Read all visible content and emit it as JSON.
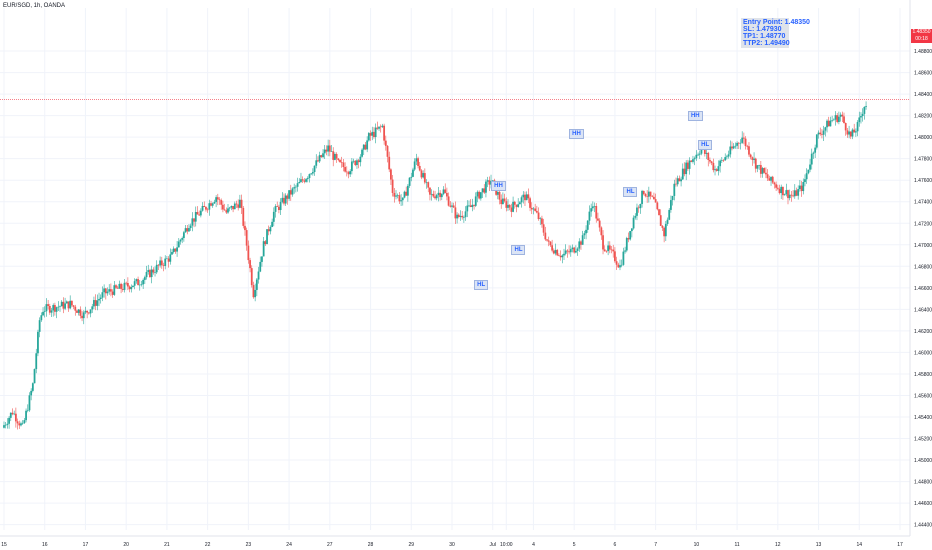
{
  "symbol_label": "EUR/SGD, 1h, OANDA",
  "trade_box": {
    "entry": "Entry Point: 1.48350",
    "sl": "SL: 1.47930",
    "tp1": "TP1: 1.48770",
    "tp2": "TTP2: 1.49490"
  },
  "markers": [
    {
      "label": "HH",
      "time": 145,
      "price": 1.4755
    },
    {
      "label": "HL",
      "time": 151,
      "price": 1.4695
    },
    {
      "label": "HH",
      "time": 168,
      "price": 1.4803
    },
    {
      "label": "HL",
      "time": 184,
      "price": 1.4749
    },
    {
      "label": "HH",
      "time": 203,
      "price": 1.482
    },
    {
      "label": "HL",
      "time": 206,
      "price": 1.4793
    },
    {
      "label": "HL",
      "time": 140,
      "price": 1.4663
    }
  ],
  "last_price": {
    "value": "1.48350",
    "sub": "00:18"
  },
  "colors": {
    "up": "#26a69a",
    "down": "#ef5350",
    "grid": "#f0f3fa",
    "marker_text": "#2962ff",
    "price_line": "#f23645"
  },
  "chart_data": {
    "type": "candlestick",
    "ylim": [
      1.4435,
      1.492
    ],
    "price_ticks": [
      "1.48800",
      "1.48600",
      "1.48400",
      "1.48200",
      "1.48000",
      "1.47800",
      "1.47600",
      "1.47400",
      "1.47200",
      "1.47000",
      "1.46800",
      "1.46600",
      "1.46400",
      "1.46200",
      "1.46000",
      "1.45800",
      "1.45600",
      "1.45400",
      "1.45200",
      "1.45000",
      "1.44800",
      "1.44600",
      "1.44400"
    ],
    "price_tick_values": [
      1.488,
      1.486,
      1.484,
      1.482,
      1.48,
      1.478,
      1.476,
      1.474,
      1.472,
      1.47,
      1.468,
      1.466,
      1.464,
      1.462,
      1.46,
      1.458,
      1.456,
      1.454,
      1.452,
      1.45,
      1.448,
      1.446,
      1.444
    ],
    "time_ticks": [
      {
        "label": "15",
        "time": 0
      },
      {
        "label": "16",
        "time": 12
      },
      {
        "label": "17",
        "time": 24
      },
      {
        "label": "20",
        "time": 36
      },
      {
        "label": "21",
        "time": 48
      },
      {
        "label": "22",
        "time": 60
      },
      {
        "label": "23",
        "time": 72
      },
      {
        "label": "24",
        "time": 84
      },
      {
        "label": "27",
        "time": 96
      },
      {
        "label": "28",
        "time": 108
      },
      {
        "label": "29",
        "time": 120
      },
      {
        "label": "30",
        "time": 132
      },
      {
        "label": "Jul",
        "time": 144
      },
      {
        "label": "10:00",
        "time": 148
      },
      {
        "label": "4",
        "time": 156
      },
      {
        "label": "5",
        "time": 168
      },
      {
        "label": "6",
        "time": 180
      },
      {
        "label": "7",
        "time": 192
      },
      {
        "label": "10",
        "time": 204
      },
      {
        "label": "11",
        "time": 216
      },
      {
        "label": "12",
        "time": 228
      },
      {
        "label": "13",
        "time": 240
      },
      {
        "label": "14",
        "time": 252
      },
      {
        "label": "17",
        "time": 264
      }
    ],
    "keypoints": [
      [
        0,
        1.453
      ],
      [
        3,
        1.4545
      ],
      [
        6,
        1.453
      ],
      [
        9,
        1.457
      ],
      [
        11,
        1.463
      ],
      [
        12,
        1.464
      ],
      [
        20,
        1.4645
      ],
      [
        24,
        1.4635
      ],
      [
        30,
        1.4655
      ],
      [
        40,
        1.4665
      ],
      [
        50,
        1.469
      ],
      [
        55,
        1.472
      ],
      [
        60,
        1.4735
      ],
      [
        63,
        1.4745
      ],
      [
        66,
        1.473
      ],
      [
        70,
        1.474
      ],
      [
        72,
        1.47
      ],
      [
        74,
        1.4655
      ],
      [
        77,
        1.47
      ],
      [
        80,
        1.473
      ],
      [
        84,
        1.4745
      ],
      [
        90,
        1.4765
      ],
      [
        96,
        1.479
      ],
      [
        99,
        1.4775
      ],
      [
        102,
        1.477
      ],
      [
        106,
        1.4785
      ],
      [
        108,
        1.48
      ],
      [
        112,
        1.481
      ],
      [
        115,
        1.475
      ],
      [
        118,
        1.474
      ],
      [
        122,
        1.478
      ],
      [
        126,
        1.4745
      ],
      [
        130,
        1.475
      ],
      [
        134,
        1.4725
      ],
      [
        138,
        1.4735
      ],
      [
        140,
        1.4745
      ],
      [
        144,
        1.476
      ],
      [
        147,
        1.474
      ],
      [
        150,
        1.4735
      ],
      [
        154,
        1.4745
      ],
      [
        158,
        1.4725
      ],
      [
        161,
        1.47
      ],
      [
        165,
        1.469
      ],
      [
        168,
        1.4695
      ],
      [
        171,
        1.4705
      ],
      [
        174,
        1.474
      ],
      [
        177,
        1.47
      ],
      [
        180,
        1.469
      ],
      [
        182,
        1.468
      ],
      [
        186,
        1.4725
      ],
      [
        189,
        1.475
      ],
      [
        192,
        1.474
      ],
      [
        195,
        1.471
      ],
      [
        198,
        1.4755
      ],
      [
        202,
        1.4775
      ],
      [
        206,
        1.479
      ],
      [
        210,
        1.477
      ],
      [
        214,
        1.4785
      ],
      [
        218,
        1.48
      ],
      [
        222,
        1.4775
      ],
      [
        226,
        1.476
      ],
      [
        230,
        1.475
      ],
      [
        233,
        1.4745
      ],
      [
        236,
        1.4755
      ],
      [
        240,
        1.48
      ],
      [
        244,
        1.4815
      ],
      [
        247,
        1.482
      ],
      [
        250,
        1.48
      ],
      [
        252,
        1.481
      ],
      [
        254,
        1.483
      ]
    ]
  }
}
